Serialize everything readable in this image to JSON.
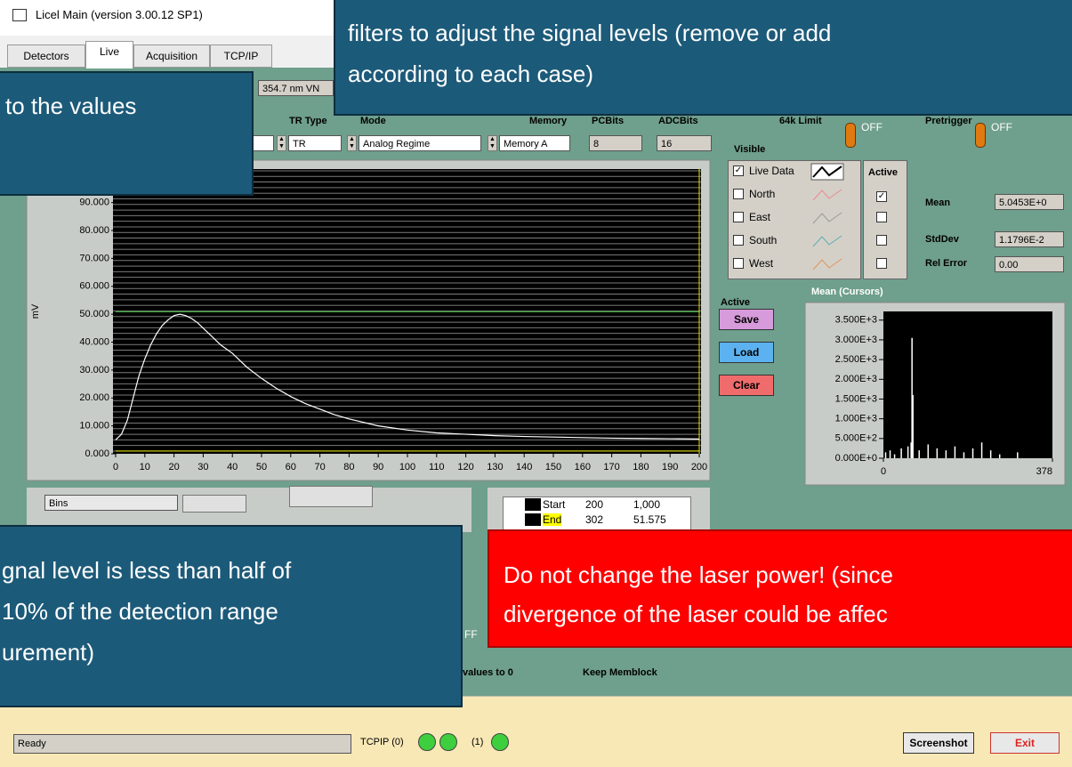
{
  "window": {
    "title": "Licel Main (version 3.00.12 SP1)",
    "tabs": [
      "Detectors",
      "Live",
      "Acquisition",
      "TCP/IP"
    ]
  },
  "controls": {
    "wavelength": "354.7 nm VN",
    "tr_type_label": "TR Type",
    "tr_type": "TR",
    "mode_label": "Mode",
    "mode": "Analog Regime",
    "memory_label": "Memory",
    "memory": "Memory A",
    "pcbits_label": "PCBits",
    "pcbits": "8",
    "adcbits_label": "ADCBits",
    "adcbits": "16",
    "limit_label": "64k Limit",
    "limit_state": "OFF",
    "pretrigger_label": "Pretrigger",
    "pretrigger_state": "OFF"
  },
  "traces": {
    "visible_label": "Visible",
    "active_label": "Active",
    "items": [
      "Live Data",
      "North",
      "East",
      "South",
      "West"
    ]
  },
  "stats": {
    "mean_label": "Mean",
    "mean": "5.0453E+0",
    "stddev_label": "StdDev",
    "stddev": "1.1796E-2",
    "relerr_label": "Rel Error",
    "relerr": "0.00"
  },
  "buttons": {
    "active_label": "Active",
    "save": "Save",
    "load": "Load",
    "clear": "Clear"
  },
  "chart_data": [
    {
      "type": "line",
      "ylabel": "mV",
      "color": "#ffffff",
      "x": [
        0,
        2,
        4,
        6,
        8,
        10,
        12,
        14,
        16,
        18,
        20,
        22,
        24,
        26,
        28,
        30,
        33,
        36,
        40,
        45,
        50,
        55,
        60,
        65,
        70,
        75,
        80,
        90,
        100,
        110,
        120,
        130,
        140,
        150,
        160,
        170,
        180,
        190,
        200
      ],
      "values": [
        5,
        7,
        12,
        20,
        28,
        34,
        39,
        43,
        46,
        48,
        49.5,
        50,
        49.5,
        48.5,
        47,
        45,
        42,
        39,
        36,
        31,
        27,
        23.5,
        20.5,
        18,
        16,
        14,
        12.5,
        10,
        8.5,
        7.5,
        7,
        6.5,
        6.2,
        6,
        5.8,
        5.6,
        5.5,
        5.4,
        5.3
      ],
      "xlim": [
        0,
        200
      ],
      "ylim": [
        0,
        102
      ],
      "xticks": [
        0,
        10,
        20,
        30,
        40,
        50,
        60,
        70,
        80,
        90,
        100,
        110,
        120,
        130,
        140,
        150,
        160,
        170,
        180,
        190,
        200
      ],
      "yticks": [
        {
          "value": 0,
          "label": "0.000"
        },
        {
          "value": 10,
          "label": "10.000"
        },
        {
          "value": 20,
          "label": "20.000"
        },
        {
          "value": 30,
          "label": "30.000"
        },
        {
          "value": 40,
          "label": "40.000"
        },
        {
          "value": 50,
          "label": "50.000"
        },
        {
          "value": 60,
          "label": "60.000"
        },
        {
          "value": 70,
          "label": "70.000"
        },
        {
          "value": 80,
          "label": "80.000"
        },
        {
          "value": 90,
          "label": "90.000"
        }
      ],
      "threshold": 50.9,
      "threshold_color": "#3fbf3f",
      "cursor_x": 200,
      "cursor_y": 1,
      "cursor_color": "#e6e600"
    },
    {
      "type": "bar",
      "title": "Mean (Cursors)",
      "color": "#ffffff",
      "x": [
        5,
        15,
        25,
        40,
        55,
        62,
        64,
        66,
        80,
        100,
        120,
        140,
        160,
        180,
        200,
        220,
        240,
        260,
        300
      ],
      "values": [
        150,
        200,
        100,
        250,
        300,
        400,
        3050,
        1600,
        200,
        350,
        250,
        200,
        300,
        150,
        250,
        400,
        200,
        100,
        150
      ],
      "xlim": [
        0,
        378
      ],
      "ylim": [
        0,
        3720
      ],
      "xticks": [
        0,
        378
      ],
      "yticks": [
        {
          "value": 0,
          "label": "0.000E+0"
        },
        {
          "value": 500,
          "label": "5.000E+2"
        },
        {
          "value": 1000,
          "label": "1.000E+3"
        },
        {
          "value": 1500,
          "label": "1.500E+3"
        },
        {
          "value": 2000,
          "label": "2.000E+3"
        },
        {
          "value": 2500,
          "label": "2.500E+3"
        },
        {
          "value": 3000,
          "label": "3.000E+3"
        },
        {
          "value": 3500,
          "label": "3.500E+3"
        }
      ]
    }
  ],
  "cursors": {
    "bins": "Bins",
    "rows": [
      [
        "Start",
        "200",
        "1,000"
      ],
      [
        "End",
        "302",
        "51.575"
      ]
    ]
  },
  "partial": {
    "off": "FF",
    "values": "values to 0",
    "memblock": "Keep Memblock"
  },
  "status": {
    "text": "Ready",
    "tcpip": "TCPIP (0)",
    "port": "(1)",
    "screenshot": "Screenshot",
    "exit": "Exit"
  },
  "callouts": {
    "top": [
      "filters to adjust the signal levels (remove or add",
      "according to each case)"
    ],
    "left": [
      "to the values"
    ],
    "bottom_left": [
      "gnal level is less than half of",
      "10% of the detection range",
      "urement)"
    ],
    "red": [
      "Do not change the laser power! (since",
      "divergence of the laser could be affec"
    ]
  }
}
